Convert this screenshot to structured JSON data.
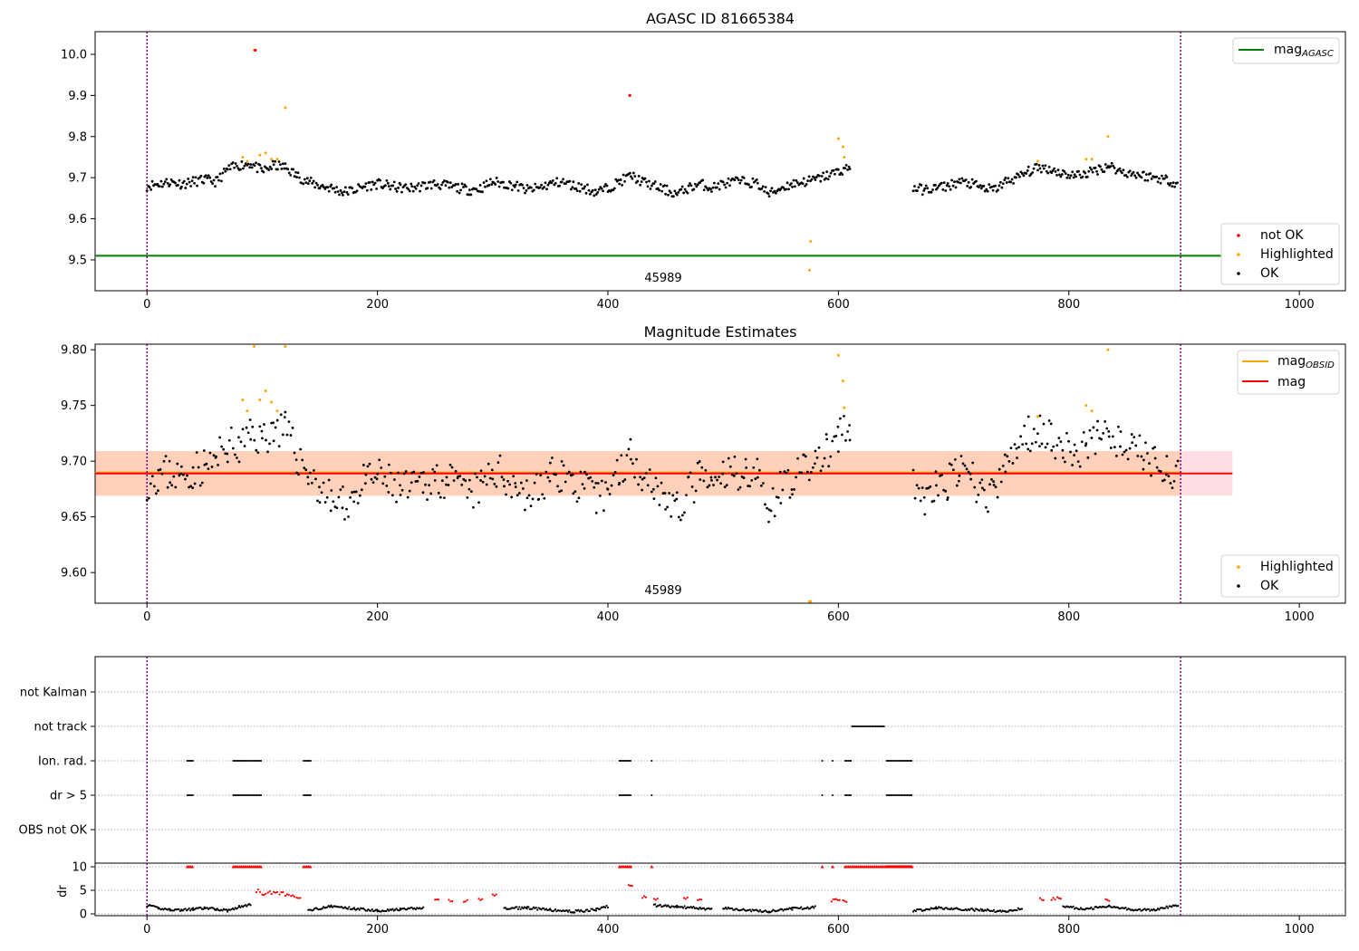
{
  "chart_data": [
    {
      "type": "scatter",
      "title": "AGASC ID 81665384",
      "xlim": [
        -45,
        1040
      ],
      "ylim": [
        9.425,
        10.055
      ],
      "xticks": [
        "0",
        "200",
        "400",
        "600",
        "800",
        "1000"
      ],
      "yticks": [
        "9.5",
        "9.6",
        "9.7",
        "9.8",
        "9.9",
        "10.0"
      ],
      "obs_bounds": [
        0,
        897
      ],
      "obsid_label": "45989",
      "mag_agasc": 9.51,
      "legend_top": {
        "label_main": "mag",
        "label_sub": "AGASC"
      },
      "legend_bottom": [
        "not OK",
        "Highlighted",
        "OK"
      ],
      "colors": {
        "ok": "#000000",
        "highlighted": "#ffa500",
        "not_ok": "#ff0000",
        "agasc": "#008000",
        "bounds": "#800080"
      },
      "series": [
        {
          "name": "OK",
          "x": [
            0,
            10,
            20,
            30,
            40,
            50,
            60,
            70,
            80,
            90,
            100,
            110,
            120,
            130,
            140,
            150,
            160,
            170,
            180,
            190,
            200,
            210,
            220,
            230,
            240,
            250,
            260,
            270,
            280,
            290,
            300,
            310,
            320,
            330,
            340,
            350,
            360,
            370,
            380,
            390,
            400,
            410,
            420,
            430,
            440,
            450,
            460,
            470,
            480,
            490,
            500,
            510,
            520,
            530,
            540,
            550,
            560,
            570,
            580,
            590,
            600,
            610,
            665,
            675,
            685,
            695,
            705,
            715,
            725,
            735,
            745,
            755,
            765,
            775,
            785,
            795,
            805,
            815,
            825,
            835,
            845,
            855,
            865,
            875,
            885,
            895
          ],
          "y": [
            9.68,
            9.685,
            9.69,
            9.685,
            9.69,
            9.695,
            9.69,
            9.72,
            9.73,
            9.735,
            9.715,
            9.73,
            9.725,
            9.705,
            9.69,
            9.68,
            9.675,
            9.665,
            9.67,
            9.68,
            9.685,
            9.68,
            9.675,
            9.675,
            9.68,
            9.685,
            9.68,
            9.675,
            9.67,
            9.675,
            9.69,
            9.685,
            9.68,
            9.67,
            9.675,
            9.685,
            9.69,
            9.68,
            9.675,
            9.665,
            9.675,
            9.69,
            9.705,
            9.69,
            9.68,
            9.67,
            9.66,
            9.675,
            9.685,
            9.675,
            9.685,
            9.69,
            9.69,
            9.685,
            9.66,
            9.675,
            9.685,
            9.69,
            9.695,
            9.705,
            9.715,
            9.725,
            9.675,
            9.67,
            9.675,
            9.68,
            9.69,
            9.685,
            9.675,
            9.67,
            9.69,
            9.7,
            9.715,
            9.725,
            9.72,
            9.71,
            9.705,
            9.71,
            9.72,
            9.73,
            9.715,
            9.71,
            9.705,
            9.7,
            9.695,
            9.685
          ]
        },
        {
          "name": "Highlighted",
          "x": [
            83,
            87,
            93,
            98,
            103,
            108,
            113,
            120,
            575,
            576,
            600,
            604,
            605,
            773,
            815,
            820,
            834
          ],
          "y": [
            9.75,
            9.74,
            10.01,
            9.755,
            9.76,
            9.745,
            9.745,
            9.87,
            9.475,
            9.545,
            9.795,
            9.775,
            9.75,
            9.74,
            9.745,
            9.745,
            9.8
          ]
        },
        {
          "name": "not OK",
          "x": [
            94,
            419
          ],
          "y": [
            10.01,
            9.9
          ]
        }
      ]
    },
    {
      "type": "scatter",
      "title": "Magnitude Estimates",
      "xlim": [
        -45,
        1040
      ],
      "ylim": [
        9.5725,
        9.805
      ],
      "xticks": [
        "0",
        "200",
        "400",
        "600",
        "800",
        "1000"
      ],
      "yticks": [
        "9.60",
        "9.65",
        "9.70",
        "9.75",
        "9.80"
      ],
      "obs_bounds": [
        0,
        897
      ],
      "obsid_label": "45989",
      "mag": 9.689,
      "band_mag": [
        9.669,
        9.709
      ],
      "band_obsid": [
        9.669,
        9.709
      ],
      "band_extent_x": [
        -45,
        942
      ],
      "legend_top": [
        {
          "label_main": "mag",
          "label_sub": "OBSID"
        },
        {
          "label_main": "mag",
          "label_sub": ""
        }
      ],
      "legend_bottom": [
        "Highlighted",
        "OK"
      ],
      "colors": {
        "ok": "#000000",
        "highlighted": "#ffa500",
        "mag": "#ff0000",
        "mag_obsid": "#ffa500",
        "band_mag": "#ffb6c1",
        "band_obsid": "#ffc8a0",
        "bounds": "#800080"
      },
      "series": [
        {
          "name": "OK",
          "x": [
            0,
            10,
            20,
            30,
            40,
            50,
            60,
            70,
            80,
            90,
            100,
            110,
            120,
            130,
            140,
            150,
            160,
            170,
            180,
            190,
            200,
            210,
            220,
            230,
            240,
            250,
            260,
            270,
            280,
            290,
            300,
            310,
            320,
            330,
            340,
            350,
            360,
            370,
            380,
            390,
            400,
            410,
            420,
            430,
            440,
            450,
            460,
            470,
            480,
            490,
            500,
            510,
            520,
            530,
            540,
            550,
            560,
            570,
            580,
            590,
            600,
            610,
            665,
            675,
            685,
            695,
            705,
            715,
            725,
            735,
            745,
            755,
            765,
            775,
            785,
            795,
            805,
            815,
            825,
            835,
            845,
            855,
            865,
            875,
            885,
            895
          ],
          "y": [
            9.682,
            9.688,
            9.69,
            9.685,
            9.692,
            9.695,
            9.7,
            9.715,
            9.71,
            9.725,
            9.72,
            9.73,
            9.728,
            9.705,
            9.69,
            9.675,
            9.665,
            9.66,
            9.67,
            9.682,
            9.686,
            9.68,
            9.675,
            9.674,
            9.68,
            9.686,
            9.682,
            9.676,
            9.67,
            9.676,
            9.692,
            9.686,
            9.68,
            9.668,
            9.674,
            9.686,
            9.69,
            9.68,
            9.676,
            9.664,
            9.676,
            9.692,
            9.706,
            9.69,
            9.68,
            9.668,
            9.655,
            9.672,
            9.686,
            9.674,
            9.686,
            9.69,
            9.692,
            9.686,
            9.66,
            9.676,
            9.686,
            9.69,
            9.7,
            9.708,
            9.72,
            9.73,
            9.675,
            9.668,
            9.674,
            9.68,
            9.69,
            9.684,
            9.672,
            9.668,
            9.695,
            9.712,
            9.725,
            9.73,
            9.722,
            9.712,
            9.706,
            9.712,
            9.722,
            9.73,
            9.712,
            9.71,
            9.705,
            9.7,
            9.695,
            9.685
          ]
        },
        {
          "name": "Highlighted",
          "x": [
            83,
            87,
            93,
            98,
            103,
            108,
            113,
            120,
            575,
            576,
            600,
            604,
            605,
            773,
            815,
            820,
            834
          ],
          "y": [
            9.755,
            9.745,
            9.803,
            9.755,
            9.763,
            9.753,
            9.745,
            9.803,
            9.574,
            9.574,
            9.795,
            9.772,
            9.748,
            9.74,
            9.75,
            9.745,
            9.8
          ]
        }
      ]
    },
    {
      "type": "scatter",
      "title": "",
      "xlim": [
        -45,
        1040
      ],
      "xticks": [
        "0",
        "200",
        "400",
        "600",
        "800",
        "1000"
      ],
      "flag_labels": [
        "not Kalman",
        "not track",
        "Ion. rad.",
        "dr > 5",
        "OBS not OK"
      ],
      "dr_yticks": [
        "10",
        "5",
        "0"
      ],
      "ylabel": "dr",
      "obs_bounds": [
        0,
        897
      ],
      "flags": {
        "not Kalman": [],
        "not track": [
          [
            612,
            640
          ]
        ],
        "Ion. rad.": [
          [
            35,
            40
          ],
          [
            75,
            100
          ],
          [
            136,
            143
          ],
          [
            410,
            420
          ],
          [
            438,
            439
          ],
          [
            586,
            587
          ],
          [
            595,
            596
          ],
          [
            606,
            611
          ],
          [
            642,
            664
          ]
        ],
        "dr > 5": [
          [
            35,
            40
          ],
          [
            75,
            100
          ],
          [
            136,
            143
          ],
          [
            410,
            420
          ],
          [
            438,
            439
          ],
          [
            586,
            587
          ],
          [
            595,
            596
          ],
          [
            606,
            611
          ],
          [
            642,
            664
          ]
        ],
        "OBS not OK": []
      },
      "dr_ok_segments": [
        {
          "x": [
            0,
            10,
            20,
            30,
            40,
            50,
            60,
            70,
            80,
            90
          ],
          "y": [
            1.8,
            1.2,
            0.9,
            0.8,
            1.0,
            1.2,
            1.0,
            0.7,
            1.5,
            1.9
          ]
        },
        {
          "x": [
            140,
            160,
            180,
            200,
            220,
            240
          ],
          "y": [
            0.8,
            1.6,
            1.1,
            0.7,
            0.9,
            1.3
          ]
        },
        {
          "x": [
            310,
            330,
            350,
            370,
            390,
            400
          ],
          "y": [
            1.1,
            1.3,
            0.8,
            0.5,
            0.9,
            1.6
          ]
        },
        {
          "x": [
            440,
            460,
            480,
            490
          ],
          "y": [
            1.8,
            1.5,
            1.2,
            0.9
          ]
        },
        {
          "x": [
            500,
            520,
            540,
            560,
            580
          ],
          "y": [
            1.2,
            0.8,
            0.5,
            1.1,
            1.4
          ]
        },
        {
          "x": [
            665,
            685,
            705,
            725,
            745,
            760
          ],
          "y": [
            0.6,
            1.3,
            1.0,
            0.8,
            0.5,
            1.2
          ]
        },
        {
          "x": [
            795,
            815,
            835,
            855,
            875,
            895
          ],
          "y": [
            1.6,
            1.0,
            1.7,
            0.9,
            0.8,
            1.9
          ]
        }
      ],
      "dr_not_ok_points": {
        "x": [
          95,
          100,
          105,
          110,
          115,
          120,
          125,
          130,
          250,
          262,
          275,
          288,
          300,
          418,
          430,
          440,
          466,
          478,
          594,
          598,
          604,
          775,
          785,
          790,
          832
        ],
        "y": [
          4.9,
          4.2,
          4.5,
          4.6,
          4.4,
          4.1,
          3.9,
          3.5,
          2.8,
          2.9,
          2.7,
          3.2,
          4.1,
          6.2,
          3.5,
          3.0,
          3.4,
          3.0,
          2.9,
          3.1,
          2.6,
          3.1,
          3.2,
          3.3,
          3.0
        ]
      },
      "colors": {
        "flag": "#000000",
        "dr_ok": "#000000",
        "dr_flag": "#ff0000",
        "bounds": "#800080"
      }
    }
  ]
}
